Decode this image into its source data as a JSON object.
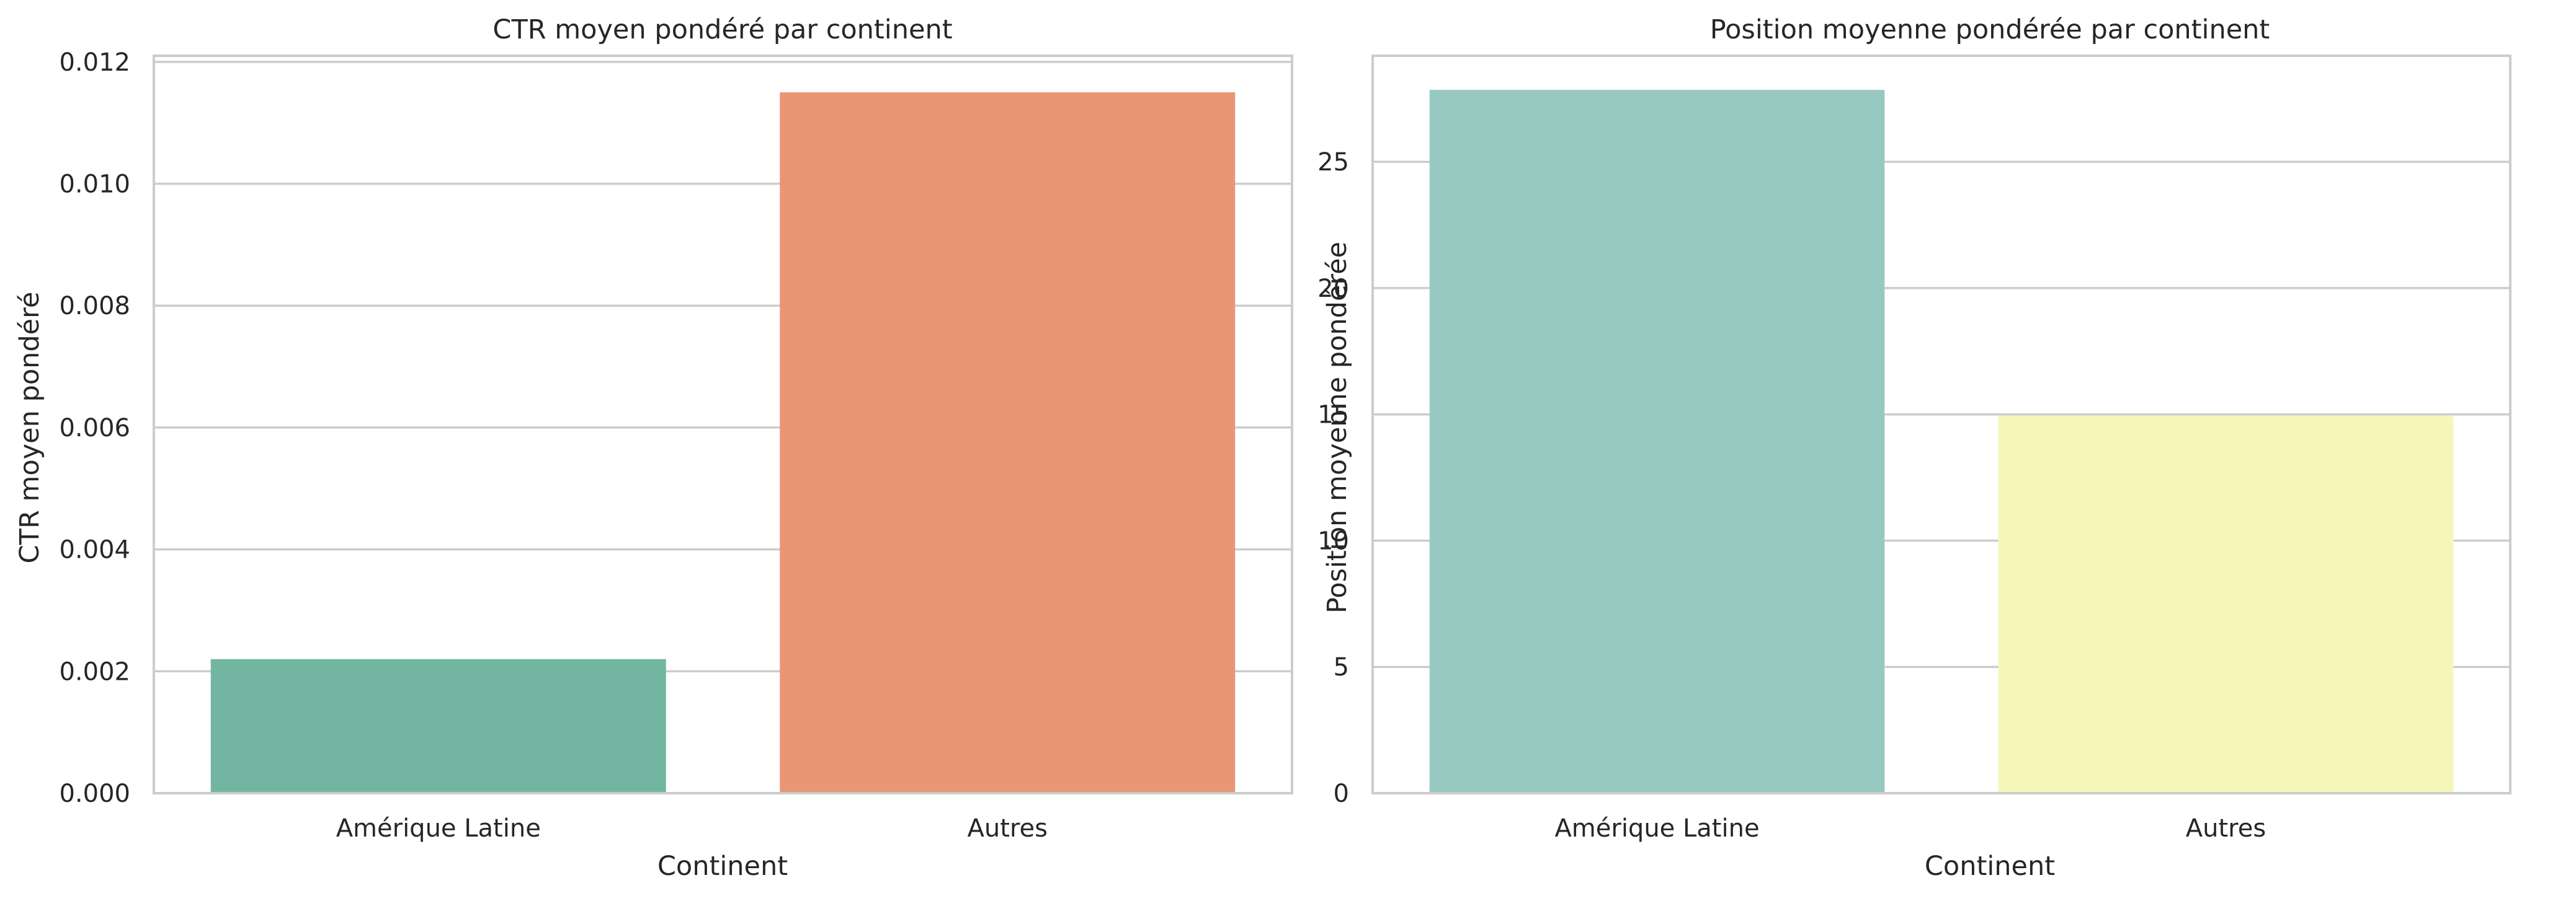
{
  "chart_data": [
    {
      "type": "bar",
      "title": "CTR moyen pondéré par continent",
      "xlabel": "Continent",
      "ylabel": "CTR moyen pondéré",
      "categories": [
        "Amérique Latine",
        "Autres"
      ],
      "values": [
        0.0022,
        0.0115
      ],
      "colors": [
        "#72b6a1",
        "#e99675"
      ],
      "ylim": [
        0,
        0.0121
      ],
      "yticks": [
        "0.000",
        "0.002",
        "0.004",
        "0.006",
        "0.008",
        "0.010",
        "0.012"
      ],
      "ytick_values": [
        0,
        0.002,
        0.004,
        0.006,
        0.008,
        0.01,
        0.012
      ],
      "grid": true
    },
    {
      "type": "bar",
      "title": "Position moyenne pondérée par continent",
      "xlabel": "Continent",
      "ylabel": "Position moyenne pondérée",
      "categories": [
        "Amérique Latine",
        "Autres"
      ],
      "values": [
        27.85,
        14.95
      ],
      "colors": [
        "#97c9c1",
        "#f6f6b8"
      ],
      "ylim": [
        0,
        29.2
      ],
      "yticks": [
        "0",
        "5",
        "10",
        "15",
        "20",
        "25"
      ],
      "ytick_values": [
        0,
        5,
        10,
        15,
        20,
        25
      ],
      "grid": true
    }
  ]
}
